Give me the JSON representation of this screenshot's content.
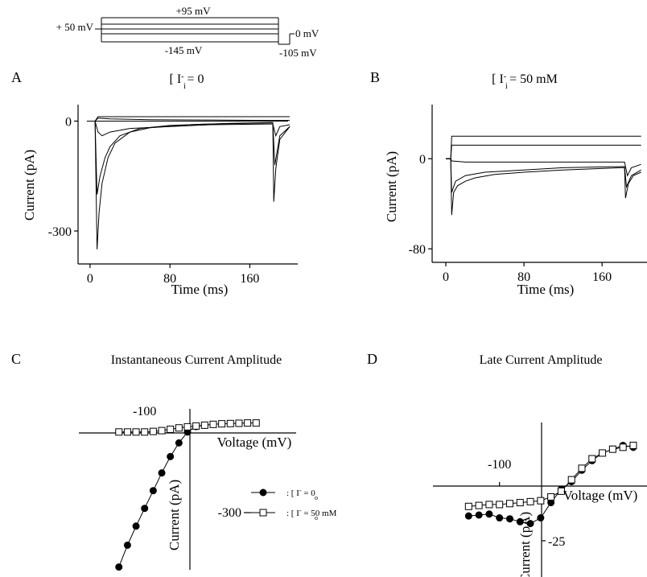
{
  "protocol": {
    "hold_label": "+ 50 mV",
    "top_label": "+95 mV",
    "bottom_label": "-145 mV",
    "tail_label": "0 mV",
    "tail_bottom_label": "-105 mV"
  },
  "chart_data": [
    {
      "id": "A",
      "panel_letter": "A",
      "type": "line",
      "title_main": "[ I",
      "title_sup": "-",
      "title_sub": "i",
      "title_rest": " = 0",
      "xlabel": "Time (ms)",
      "ylabel": "Current (pA)",
      "xlim": [
        -12,
        208
      ],
      "ylim": [
        -390,
        45
      ],
      "xticks": [
        0,
        80,
        160
      ],
      "xtick_labels": [
        "0",
        "80",
        "160"
      ],
      "yticks": [
        0,
        -300
      ],
      "ytick_labels": [
        "0",
        "-300"
      ],
      "series": [
        {
          "x": [
            0,
            5,
            8,
            20,
            60,
            120,
            180,
            183,
            200
          ],
          "y": [
            0,
            0,
            12,
            12,
            12,
            12,
            12,
            12,
            12
          ]
        },
        {
          "x": [
            0,
            5,
            8,
            20,
            60,
            120,
            180,
            183,
            200
          ],
          "y": [
            0,
            0,
            8,
            6,
            4,
            3,
            2,
            2,
            2
          ]
        },
        {
          "x": [
            0,
            5,
            8,
            12,
            20,
            40,
            80,
            120,
            180,
            183,
            186,
            190,
            200
          ],
          "y": [
            0,
            0,
            -30,
            -40,
            -30,
            -20,
            -15,
            -10,
            -8,
            -8,
            -40,
            -15,
            -10
          ]
        },
        {
          "x": [
            0,
            5,
            7,
            10,
            15,
            20,
            30,
            50,
            80,
            120,
            180,
            183,
            185,
            190,
            200
          ],
          "y": [
            0,
            0,
            -200,
            -150,
            -100,
            -70,
            -40,
            -20,
            -12,
            -8,
            -5,
            -5,
            -120,
            -40,
            -15
          ]
        },
        {
          "x": [
            0,
            5,
            7,
            9,
            12,
            18,
            25,
            40,
            60,
            100,
            140,
            180,
            183,
            184,
            186,
            190,
            200
          ],
          "y": [
            0,
            0,
            -350,
            -250,
            -170,
            -100,
            -60,
            -30,
            -18,
            -10,
            -6,
            -4,
            -4,
            -220,
            -130,
            -50,
            -15
          ]
        }
      ]
    },
    {
      "id": "B",
      "panel_letter": "B",
      "type": "line",
      "title_main": "[ I",
      "title_sup": "-",
      "title_sub": "i",
      "title_rest": " = 50 mM",
      "xlabel": "Time (ms)",
      "ylabel": "Current (pA)",
      "xlim": [
        -14,
        206
      ],
      "ylim": [
        -92,
        48
      ],
      "xticks": [
        0,
        80,
        160
      ],
      "xtick_labels": [
        "0",
        "80",
        "160"
      ],
      "yticks": [
        0,
        -80
      ],
      "ytick_labels": [
        "0",
        "-80"
      ],
      "series": [
        {
          "x": [
            0,
            5,
            6,
            60,
            120,
            180,
            183,
            190,
            200
          ],
          "y": [
            0,
            0,
            20,
            20,
            20,
            20,
            20,
            20,
            20
          ]
        },
        {
          "x": [
            0,
            5,
            6,
            60,
            120,
            180,
            183,
            190,
            200
          ],
          "y": [
            0,
            0,
            12,
            12,
            12,
            12,
            12,
            12,
            12
          ]
        },
        {
          "x": [
            0,
            5,
            6,
            20,
            60,
            120,
            180,
            183,
            186,
            190,
            200
          ],
          "y": [
            0,
            0,
            -2,
            -3,
            -3,
            -3,
            -3,
            -3,
            -15,
            -8,
            -5
          ]
        },
        {
          "x": [
            0,
            5,
            6,
            10,
            20,
            40,
            80,
            120,
            180,
            183,
            185,
            190,
            200
          ],
          "y": [
            0,
            0,
            -30,
            -20,
            -15,
            -12,
            -10,
            -8,
            -7,
            -7,
            -25,
            -15,
            -10
          ]
        },
        {
          "x": [
            0,
            5,
            6,
            8,
            12,
            20,
            30,
            50,
            80,
            120,
            180,
            183,
            184,
            187,
            192,
            200
          ],
          "y": [
            0,
            0,
            -50,
            -30,
            -24,
            -20,
            -17,
            -14,
            -12,
            -10,
            -8,
            -8,
            -35,
            -22,
            -15,
            -12
          ]
        }
      ]
    },
    {
      "id": "C",
      "panel_letter": "C",
      "type": "scatter",
      "title": "Instantaneous Current Amplitude",
      "xlabel": "Voltage (mV)",
      "ylabel": "Current (pA)",
      "xlim": [
        -215,
        165
      ],
      "ylim": [
        -530,
        60
      ],
      "xticks": [
        -100
      ],
      "xtick_labels": [
        "-100"
      ],
      "yticks": [
        -300
      ],
      "ytick_labels": [
        "-300"
      ],
      "legend": [
        {
          "marker": "filled-circle",
          "text": ": [ I",
          "sup": "-",
          "sub": "o",
          "rest": " = 0"
        },
        {
          "marker": "open-square",
          "text": ": [ I",
          "sup": "-",
          "sub": "o",
          "rest": " = 50 mM"
        }
      ],
      "series": [
        {
          "marker": "filled-circle",
          "x": [
            -145,
            -130,
            -115,
            -100,
            -85,
            -70,
            -55,
            -40,
            -25,
            -10,
            5
          ],
          "y": [
            -520,
            -440,
            -370,
            -305,
            -240,
            -175,
            -115,
            -65,
            -25,
            -5,
            0
          ]
        },
        {
          "marker": "open-square",
          "x": [
            -145,
            -130,
            -115,
            -100,
            -85,
            -70,
            -55,
            -40,
            -25,
            -10,
            5,
            20,
            35,
            50,
            65,
            80,
            95
          ],
          "y": [
            -25,
            -25,
            -25,
            -25,
            -23,
            -20,
            -15,
            -10,
            -6,
            -3,
            0,
            3,
            5,
            6,
            7,
            8,
            8
          ]
        }
      ]
    },
    {
      "id": "D",
      "panel_letter": "D",
      "type": "scatter",
      "title": "Late Current Amplitude",
      "xlabel": "Voltage (mV)",
      "ylabel": "Current (pA)",
      "xlim": [
        -197,
        115
      ],
      "ylim": [
        -44,
        37
      ],
      "xticks": [
        -100
      ],
      "xtick_labels": [
        "-100"
      ],
      "yticks": [
        -25
      ],
      "ytick_labels": [
        "-25"
      ],
      "series": [
        {
          "marker": "filled-circle",
          "x": [
            -145,
            -130,
            -115,
            -100,
            -85,
            -70,
            -55,
            -40,
            -25,
            -10,
            5,
            20,
            35,
            50,
            65,
            80,
            95
          ],
          "y": [
            -12,
            -11.5,
            -11,
            -13,
            -13.5,
            -15,
            -16,
            -13,
            -5,
            2,
            6,
            12,
            17,
            21,
            23,
            25,
            24
          ]
        },
        {
          "marker": "open-square",
          "x": [
            -145,
            -130,
            -115,
            -100,
            -85,
            -70,
            -55,
            -40,
            -25,
            -10,
            5,
            20,
            35,
            50,
            65,
            80,
            95
          ],
          "y": [
            -7,
            -6.5,
            -6,
            -6,
            -5.5,
            -5,
            -4.5,
            -4,
            -2,
            1,
            7,
            13,
            18,
            21,
            23,
            24,
            25
          ]
        }
      ]
    }
  ]
}
